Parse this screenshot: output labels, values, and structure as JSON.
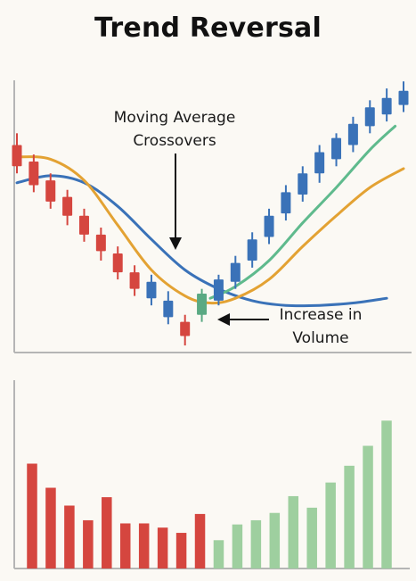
{
  "chart_data": [
    {
      "type": "candlestick",
      "title": "Trend Reversal",
      "candles": [
        {
          "open": 88,
          "close": 79,
          "high": 93,
          "low": 76,
          "trend": "down"
        },
        {
          "open": 81,
          "close": 71,
          "high": 84,
          "low": 68,
          "trend": "down"
        },
        {
          "open": 73,
          "close": 64,
          "high": 76,
          "low": 61,
          "trend": "down"
        },
        {
          "open": 66,
          "close": 58,
          "high": 69,
          "low": 54,
          "trend": "down"
        },
        {
          "open": 58,
          "close": 50,
          "high": 61,
          "low": 47,
          "trend": "down"
        },
        {
          "open": 50,
          "close": 43,
          "high": 53,
          "low": 39,
          "trend": "down"
        },
        {
          "open": 42,
          "close": 34,
          "high": 45,
          "low": 31,
          "trend": "down"
        },
        {
          "open": 34,
          "close": 27,
          "high": 37,
          "low": 24,
          "trend": "down"
        },
        {
          "open": 23,
          "close": 30,
          "high": 33,
          "low": 20,
          "trend": "up"
        },
        {
          "open": 15,
          "close": 22,
          "high": 26,
          "low": 12,
          "trend": "up"
        },
        {
          "open": 13,
          "close": 7,
          "high": 16,
          "low": 3,
          "trend": "down"
        },
        {
          "open": 16,
          "close": 25,
          "high": 27,
          "low": 13,
          "trend": "reversal"
        },
        {
          "open": 22,
          "close": 31,
          "high": 33,
          "low": 20,
          "trend": "up"
        },
        {
          "open": 30,
          "close": 38,
          "high": 41,
          "low": 27,
          "trend": "up"
        },
        {
          "open": 39,
          "close": 48,
          "high": 51,
          "low": 36,
          "trend": "up"
        },
        {
          "open": 49,
          "close": 58,
          "high": 61,
          "low": 46,
          "trend": "up"
        },
        {
          "open": 59,
          "close": 68,
          "high": 71,
          "low": 56,
          "trend": "up"
        },
        {
          "open": 67,
          "close": 76,
          "high": 79,
          "low": 64,
          "trend": "up"
        },
        {
          "open": 76,
          "close": 85,
          "high": 88,
          "low": 72,
          "trend": "up"
        },
        {
          "open": 82,
          "close": 91,
          "high": 93,
          "low": 79,
          "trend": "up"
        },
        {
          "open": 88,
          "close": 97,
          "high": 100,
          "low": 85,
          "trend": "up"
        },
        {
          "open": 96,
          "close": 104,
          "high": 107,
          "low": 93,
          "trend": "up"
        },
        {
          "open": 101,
          "close": 108,
          "high": 112,
          "low": 98,
          "trend": "up"
        },
        {
          "open": 105,
          "close": 111,
          "high": 115,
          "low": 102,
          "trend": "up"
        }
      ],
      "series": [
        {
          "name": "slow-ma",
          "color": "#3a72b8",
          "x": [
            0,
            2,
            4,
            6,
            8,
            10,
            12,
            14,
            16,
            18,
            20,
            22
          ],
          "values": [
            72,
            75,
            72,
            62,
            48,
            35,
            27,
            22,
            20,
            20,
            21,
            23
          ]
        },
        {
          "name": "medium-ma",
          "color": "#e3a233",
          "x": [
            0,
            2,
            4,
            6,
            8,
            10,
            11.5,
            13,
            15,
            17,
            19,
            21,
            23
          ],
          "values": [
            83,
            82,
            73,
            54,
            35,
            24,
            21,
            23,
            31,
            45,
            58,
            70,
            78
          ]
        },
        {
          "name": "fast-ma",
          "color": "#5fba8d",
          "x": [
            11.5,
            13,
            15,
            17,
            19,
            21,
            22.5
          ],
          "values": [
            23,
            28,
            39,
            55,
            70,
            86,
            96
          ]
        }
      ],
      "ylim": [
        0,
        120
      ],
      "annotations": [
        {
          "text": "Moving Average",
          "target": "crossover"
        },
        {
          "text": "Crossovers",
          "target": "crossover"
        },
        {
          "text": "Increase in",
          "target": "reversal-candle"
        },
        {
          "text": "Volume",
          "target": "reversal-candle"
        }
      ],
      "grid": false
    },
    {
      "type": "bar",
      "title": "",
      "values": [
        100,
        77,
        60,
        46,
        68,
        43,
        43,
        39,
        34,
        52,
        27,
        42,
        46,
        53,
        69,
        58,
        82,
        98,
        117,
        141
      ],
      "colors": [
        "#d5463f",
        "#d5463f",
        "#d5463f",
        "#d5463f",
        "#d5463f",
        "#d5463f",
        "#d5463f",
        "#d5463f",
        "#d5463f",
        "#d5463f",
        "#9ecf9f",
        "#9ecf9f",
        "#9ecf9f",
        "#9ecf9f",
        "#9ecf9f",
        "#9ecf9f",
        "#9ecf9f",
        "#9ecf9f",
        "#9ecf9f",
        "#9ecf9f"
      ],
      "ylim": [
        0,
        160
      ],
      "grid": false
    }
  ],
  "colors": {
    "bearish": "#d5463f",
    "bullish": "#3a72b8",
    "reversal": "#5aa983",
    "volume_down": "#d5463f",
    "volume_up": "#9ecf9f",
    "axis": "#b5b5b5"
  }
}
